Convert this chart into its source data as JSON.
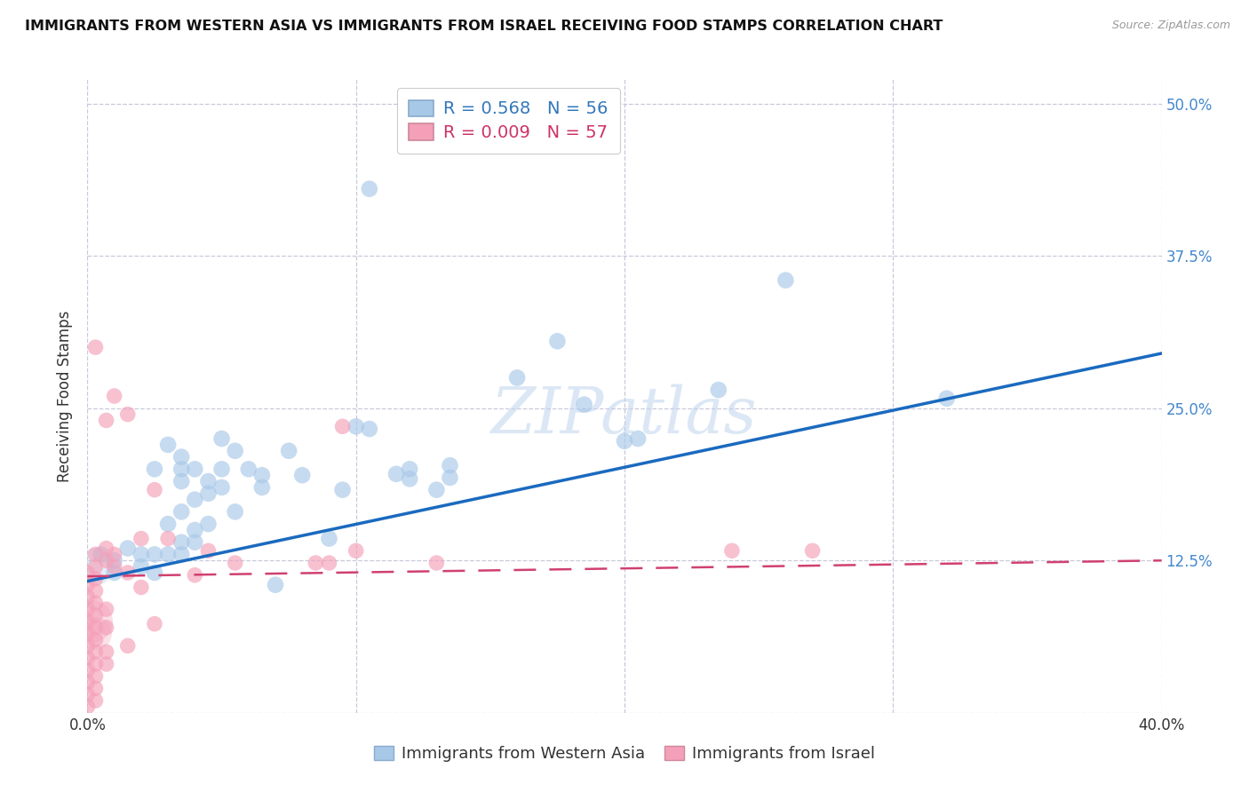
{
  "title": "IMMIGRANTS FROM WESTERN ASIA VS IMMIGRANTS FROM ISRAEL RECEIVING FOOD STAMPS CORRELATION CHART",
  "source": "Source: ZipAtlas.com",
  "ylabel": "Receiving Food Stamps",
  "xlim": [
    0.0,
    0.4
  ],
  "ylim": [
    0.0,
    0.52
  ],
  "blue_R": "0.568",
  "blue_N": "56",
  "pink_R": "0.009",
  "pink_N": "57",
  "legend_label_blue": "Immigrants from Western Asia",
  "legend_label_pink": "Immigrants from Israel",
  "blue_color": "#a8c8e8",
  "pink_color": "#f4a0b8",
  "blue_line_color": "#1a6abf",
  "pink_line_color": "#d04070",
  "watermark": "ZIPatlas",
  "blue_points": [
    [
      0.005,
      0.13
    ],
    [
      0.01,
      0.125
    ],
    [
      0.01,
      0.115
    ],
    [
      0.015,
      0.135
    ],
    [
      0.02,
      0.13
    ],
    [
      0.02,
      0.12
    ],
    [
      0.025,
      0.2
    ],
    [
      0.025,
      0.13
    ],
    [
      0.025,
      0.115
    ],
    [
      0.03,
      0.22
    ],
    [
      0.03,
      0.155
    ],
    [
      0.03,
      0.13
    ],
    [
      0.035,
      0.21
    ],
    [
      0.035,
      0.2
    ],
    [
      0.035,
      0.19
    ],
    [
      0.035,
      0.165
    ],
    [
      0.035,
      0.14
    ],
    [
      0.035,
      0.13
    ],
    [
      0.04,
      0.2
    ],
    [
      0.04,
      0.175
    ],
    [
      0.04,
      0.15
    ],
    [
      0.04,
      0.14
    ],
    [
      0.045,
      0.19
    ],
    [
      0.045,
      0.18
    ],
    [
      0.045,
      0.155
    ],
    [
      0.05,
      0.225
    ],
    [
      0.05,
      0.2
    ],
    [
      0.05,
      0.185
    ],
    [
      0.055,
      0.215
    ],
    [
      0.055,
      0.165
    ],
    [
      0.06,
      0.2
    ],
    [
      0.065,
      0.195
    ],
    [
      0.065,
      0.185
    ],
    [
      0.07,
      0.105
    ],
    [
      0.075,
      0.215
    ],
    [
      0.08,
      0.195
    ],
    [
      0.09,
      0.143
    ],
    [
      0.095,
      0.183
    ],
    [
      0.1,
      0.235
    ],
    [
      0.105,
      0.43
    ],
    [
      0.105,
      0.233
    ],
    [
      0.115,
      0.196
    ],
    [
      0.12,
      0.2
    ],
    [
      0.12,
      0.192
    ],
    [
      0.13,
      0.183
    ],
    [
      0.135,
      0.203
    ],
    [
      0.135,
      0.193
    ],
    [
      0.16,
      0.275
    ],
    [
      0.175,
      0.305
    ],
    [
      0.185,
      0.253
    ],
    [
      0.2,
      0.223
    ],
    [
      0.205,
      0.225
    ],
    [
      0.235,
      0.265
    ],
    [
      0.26,
      0.355
    ],
    [
      0.32,
      0.258
    ]
  ],
  "pink_points": [
    [
      0.0,
      0.115
    ],
    [
      0.0,
      0.105
    ],
    [
      0.0,
      0.095
    ],
    [
      0.0,
      0.085
    ],
    [
      0.0,
      0.075
    ],
    [
      0.0,
      0.065
    ],
    [
      0.0,
      0.055
    ],
    [
      0.0,
      0.045
    ],
    [
      0.0,
      0.035
    ],
    [
      0.0,
      0.025
    ],
    [
      0.0,
      0.015
    ],
    [
      0.0,
      0.005
    ],
    [
      0.003,
      0.3
    ],
    [
      0.003,
      0.13
    ],
    [
      0.003,
      0.12
    ],
    [
      0.003,
      0.11
    ],
    [
      0.003,
      0.1
    ],
    [
      0.003,
      0.09
    ],
    [
      0.003,
      0.08
    ],
    [
      0.003,
      0.07
    ],
    [
      0.003,
      0.06
    ],
    [
      0.003,
      0.05
    ],
    [
      0.003,
      0.04
    ],
    [
      0.003,
      0.03
    ],
    [
      0.003,
      0.02
    ],
    [
      0.003,
      0.01
    ],
    [
      0.007,
      0.24
    ],
    [
      0.007,
      0.135
    ],
    [
      0.007,
      0.125
    ],
    [
      0.007,
      0.085
    ],
    [
      0.007,
      0.07
    ],
    [
      0.007,
      0.05
    ],
    [
      0.007,
      0.04
    ],
    [
      0.01,
      0.26
    ],
    [
      0.01,
      0.13
    ],
    [
      0.01,
      0.12
    ],
    [
      0.015,
      0.245
    ],
    [
      0.015,
      0.115
    ],
    [
      0.015,
      0.055
    ],
    [
      0.02,
      0.143
    ],
    [
      0.02,
      0.103
    ],
    [
      0.025,
      0.183
    ],
    [
      0.025,
      0.073
    ],
    [
      0.03,
      0.143
    ],
    [
      0.04,
      0.113
    ],
    [
      0.045,
      0.133
    ],
    [
      0.055,
      0.123
    ],
    [
      0.085,
      0.123
    ],
    [
      0.09,
      0.123
    ],
    [
      0.095,
      0.235
    ],
    [
      0.1,
      0.133
    ],
    [
      0.13,
      0.123
    ],
    [
      0.24,
      0.133
    ],
    [
      0.27,
      0.133
    ]
  ],
  "blue_trendline": [
    [
      0.0,
      0.108
    ],
    [
      0.4,
      0.295
    ]
  ],
  "pink_trendline": [
    [
      0.0,
      0.112
    ],
    [
      0.4,
      0.125
    ]
  ],
  "background_color": "#ffffff",
  "grid_color": "#c8c8dc",
  "title_fontsize": 11.5,
  "source_fontsize": 9,
  "axis_label_fontsize": 12,
  "tick_fontsize": 12,
  "legend_fontsize": 14
}
